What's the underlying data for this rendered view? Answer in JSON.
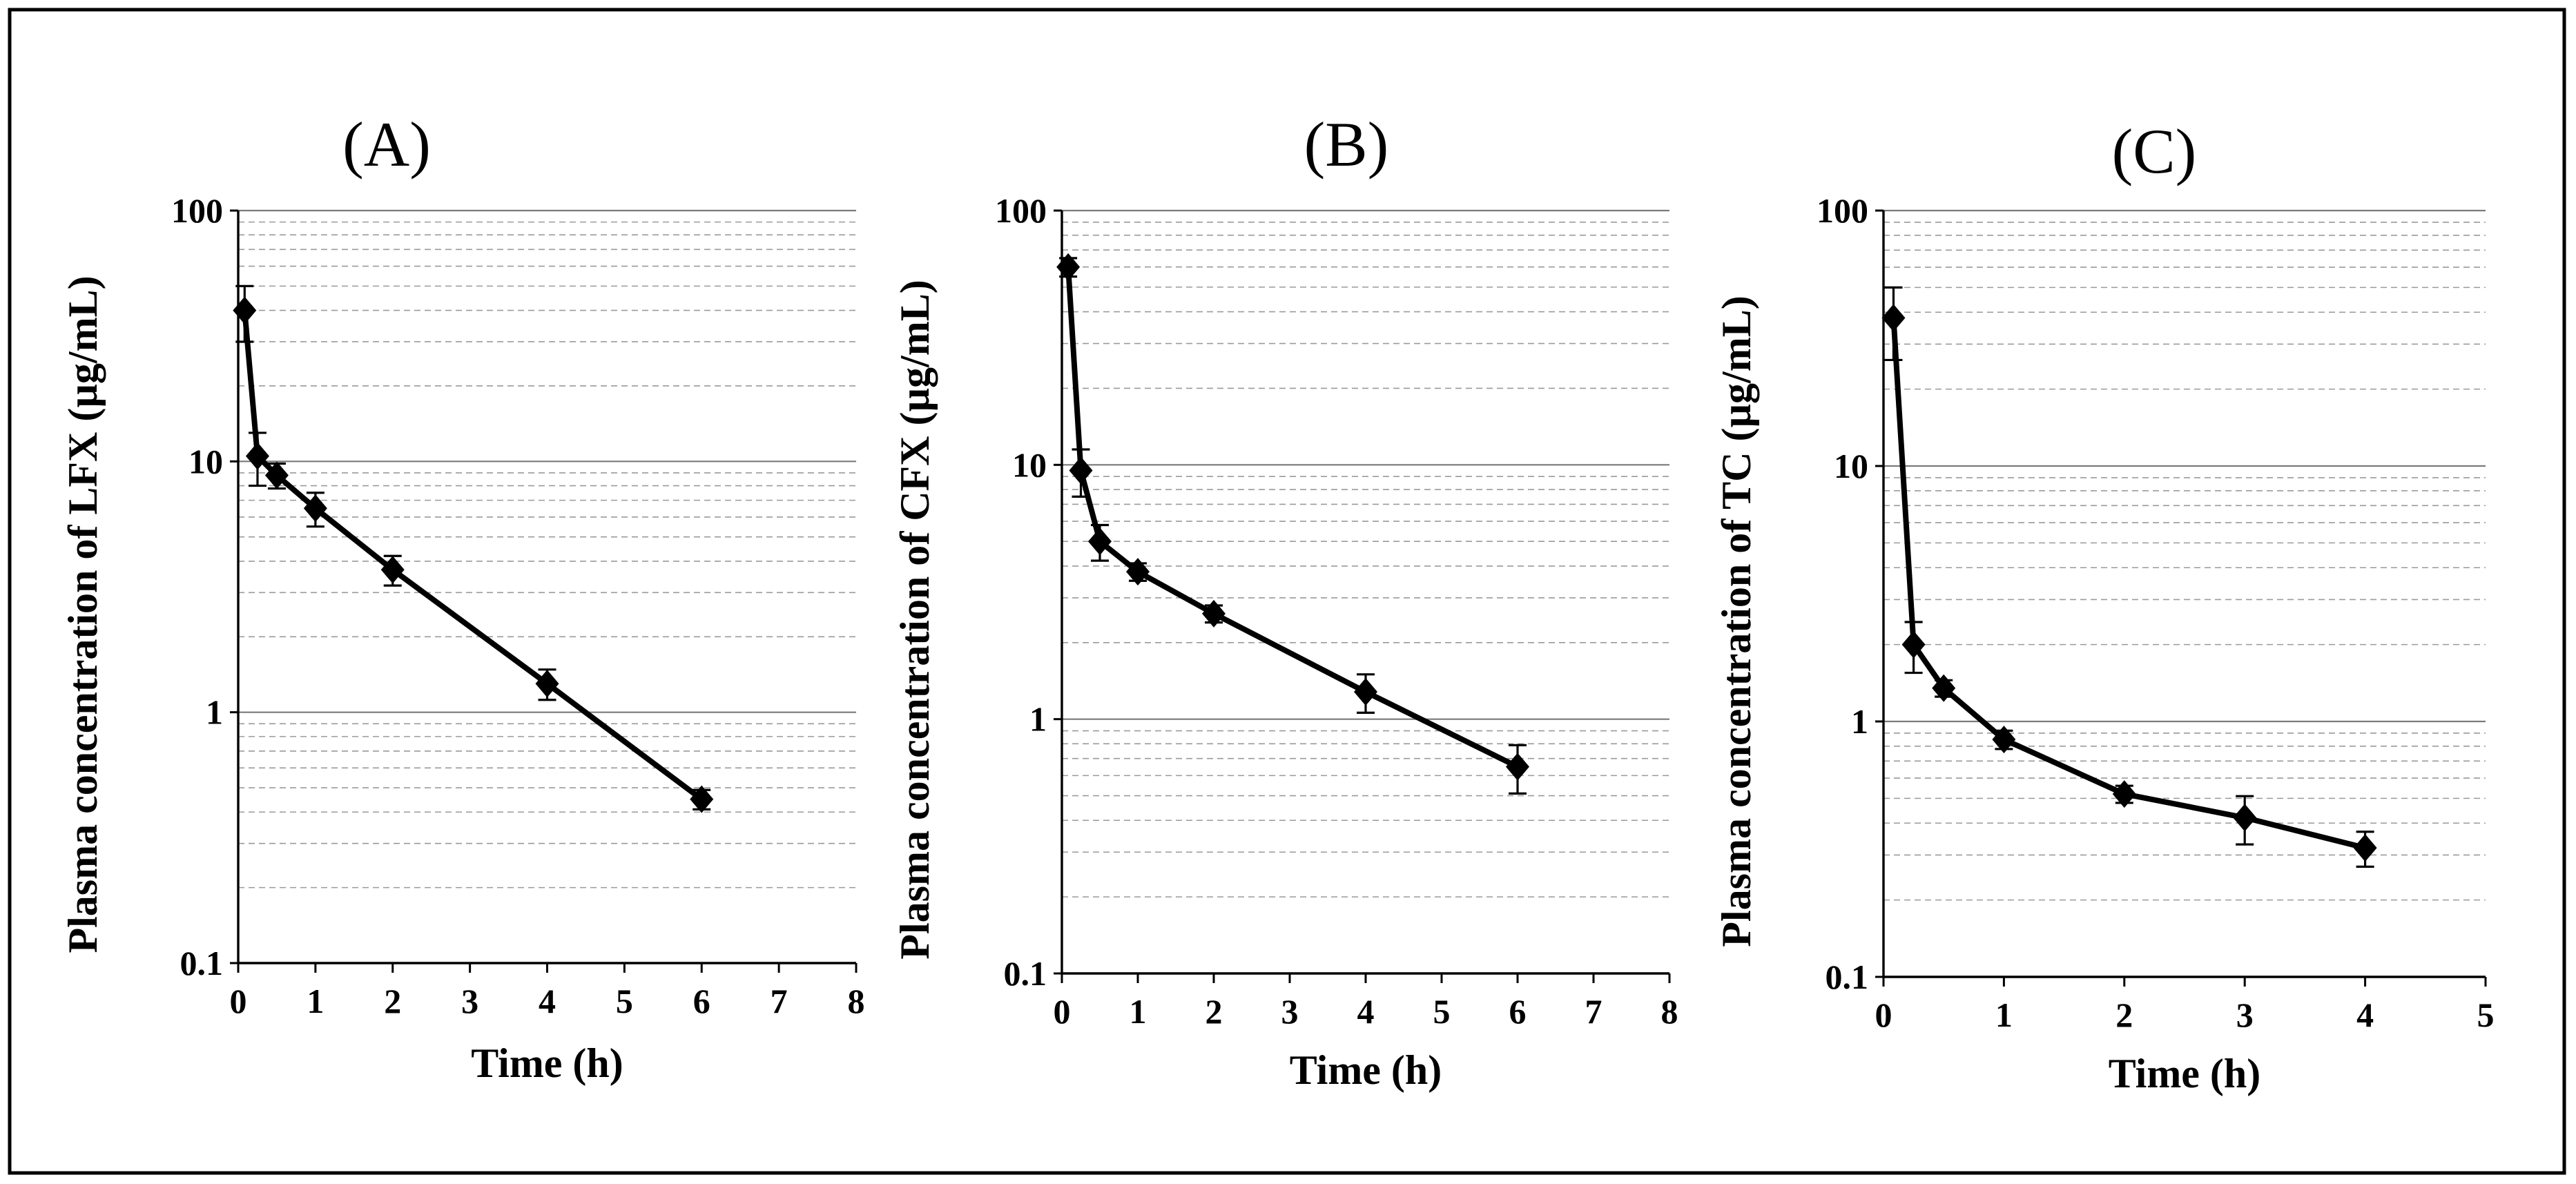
{
  "chart_data": [
    {
      "type": "line",
      "title": "(A)",
      "xlabel": "Time (h)",
      "ylabel": "Plasma concentration of  LFX (µg/mL)",
      "yscale": "log",
      "xlim": [
        0,
        8
      ],
      "ylim": [
        0.1,
        100
      ],
      "x_ticks": [
        "0",
        "1",
        "2",
        "3",
        "4",
        "5",
        "6",
        "7",
        "8"
      ],
      "y_ticks": [
        "0.1",
        "1",
        "10",
        "100"
      ],
      "series": [
        {
          "name": "LFX",
          "x": [
            0.083,
            0.25,
            0.5,
            1,
            2,
            4,
            6
          ],
          "y": [
            40,
            10.5,
            8.8,
            6.5,
            3.7,
            1.3,
            0.45
          ],
          "error": [
            10,
            2.5,
            1.0,
            1.0,
            0.5,
            0.18,
            0.04
          ]
        }
      ]
    },
    {
      "type": "line",
      "title": "(B)",
      "xlabel": "Time (h)",
      "ylabel": "Plasma concentration of  CFX (µg/mL)",
      "yscale": "log",
      "xlim": [
        0,
        8
      ],
      "ylim": [
        0.1,
        100
      ],
      "x_ticks": [
        "0",
        "1",
        "2",
        "3",
        "4",
        "5",
        "6",
        "7",
        "8"
      ],
      "y_ticks": [
        "0.1",
        "1",
        "10",
        "100"
      ],
      "series": [
        {
          "name": "CFX",
          "x": [
            0.083,
            0.25,
            0.5,
            1,
            2,
            4,
            6
          ],
          "y": [
            60,
            9.5,
            5.0,
            3.8,
            2.6,
            1.28,
            0.65
          ],
          "error": [
            5,
            2.0,
            0.8,
            0.3,
            0.2,
            0.22,
            0.14
          ]
        }
      ]
    },
    {
      "type": "line",
      "title": "(C)",
      "xlabel": "Time (h)",
      "ylabel": "Plasma concentration of  TC (µg/mL)",
      "yscale": "log",
      "xlim": [
        0,
        5
      ],
      "ylim": [
        0.1,
        100
      ],
      "x_ticks": [
        "0",
        "1",
        "2",
        "3",
        "4",
        "5"
      ],
      "y_ticks": [
        "0.1",
        "1",
        "10",
        "100"
      ],
      "series": [
        {
          "name": "TC",
          "x": [
            0.083,
            0.25,
            0.5,
            1,
            2,
            3,
            4
          ],
          "y": [
            38,
            2.0,
            1.35,
            0.85,
            0.52,
            0.42,
            0.32
          ],
          "error": [
            12,
            0.45,
            0.1,
            0.07,
            0.04,
            0.09,
            0.05
          ]
        }
      ]
    }
  ]
}
